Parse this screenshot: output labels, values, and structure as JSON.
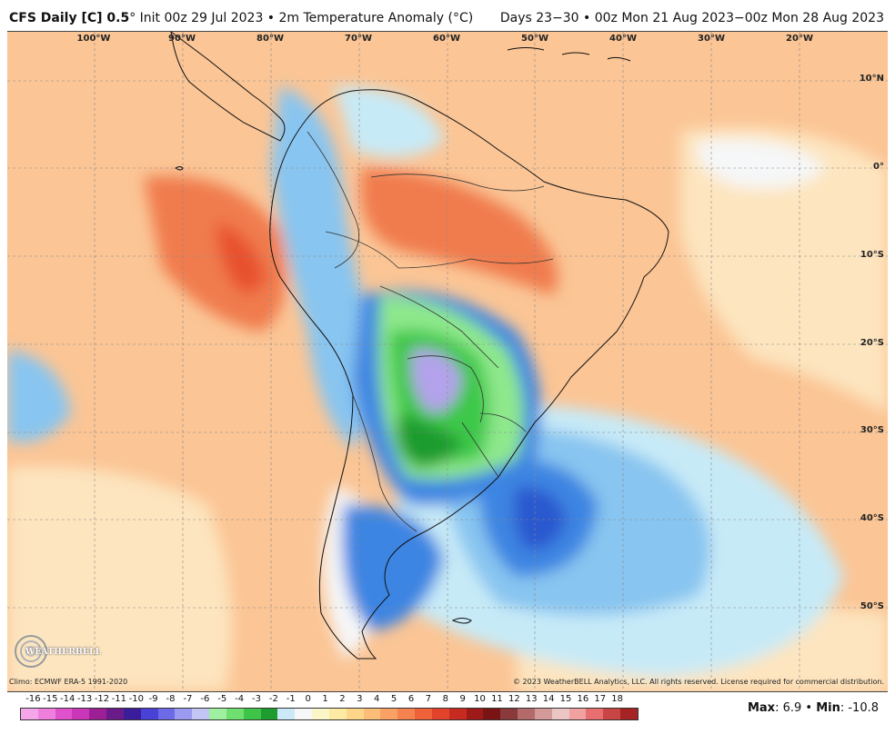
{
  "header": {
    "title_bold": "CFS Daily [C] 0.5",
    "title_rest": "° Init 00z 29 Jul 2023 • 2m Temperature Anomaly (°C)",
    "valid_range": "Days 23−30 • 00z Mon 21 Aug 2023−00z Mon 28 Aug 2023"
  },
  "map": {
    "longitude_labels": [
      "100°W",
      "90°W",
      "80°W",
      "70°W",
      "60°W",
      "50°W",
      "40°W",
      "30°W",
      "20°W"
    ],
    "latitude_labels": [
      "10°N",
      "0°",
      "10°S",
      "20°S",
      "30°S",
      "40°S",
      "50°S"
    ],
    "colors": {
      "ocean_warm": "#fbc595",
      "ocean_light": "#fde5bf",
      "neutral": "#f6f7f8",
      "hot": "#f07c4e",
      "hottest": "#e8512d",
      "cool_light": "#c7eaf7",
      "cool_mid": "#88c5f0",
      "cold": "#3e85e2",
      "colder": "#2a59cf",
      "green_light": "#8ee88c",
      "green": "#3cc84a",
      "green_dark": "#1f9c2e",
      "purple": "#b4a2ec",
      "coastline": "#111111",
      "border": "#333333",
      "gridline": "#888888"
    }
  },
  "footer": {
    "logo_text": "WEATHERBELL",
    "climo": "Climo: ECMWF ERA-5 1991-2020",
    "copyright": "© 2023 WeatherBELL Analytics, LLC. All rights reserved. License required for commercial distribution.",
    "max_label": "Max",
    "max_value": ": 6.9",
    "separator": " • ",
    "min_label": "Min",
    "min_value": ": -10.8"
  },
  "colorscale": {
    "labels": [
      "-16",
      "-15",
      "-14",
      "-13",
      "-12",
      "-11",
      "-10",
      "-9",
      "-8",
      "-7",
      "-6",
      "-5",
      "-4",
      "-3",
      "-2",
      "-1",
      "0",
      "1",
      "2",
      "3",
      "4",
      "5",
      "6",
      "7",
      "8",
      "9",
      "10",
      "11",
      "12",
      "13",
      "14",
      "15",
      "16",
      "17",
      "18"
    ],
    "colors": [
      "#f5a6e8",
      "#ef7fdc",
      "#e052cc",
      "#c936b8",
      "#9c1f96",
      "#6b1a8a",
      "#3b1d9c",
      "#4a41d6",
      "#6c6ae6",
      "#9b99f0",
      "#c3c5f5",
      "#9ff0a0",
      "#6fdf6f",
      "#3fc44a",
      "#1f9c2e",
      "#cbe9f8",
      "#f7f7f7",
      "#fbf6c8",
      "#fdeaa3",
      "#fdd68a",
      "#fcbd79",
      "#f9a165",
      "#f5834f",
      "#ef6239",
      "#e2432a",
      "#c62a20",
      "#9e1a18",
      "#7a1414",
      "#8a3a3a",
      "#b46a6a",
      "#d49a9a",
      "#ecc5c5",
      "#f2a1a1",
      "#e76f6f",
      "#c94444",
      "#a52323"
    ]
  }
}
